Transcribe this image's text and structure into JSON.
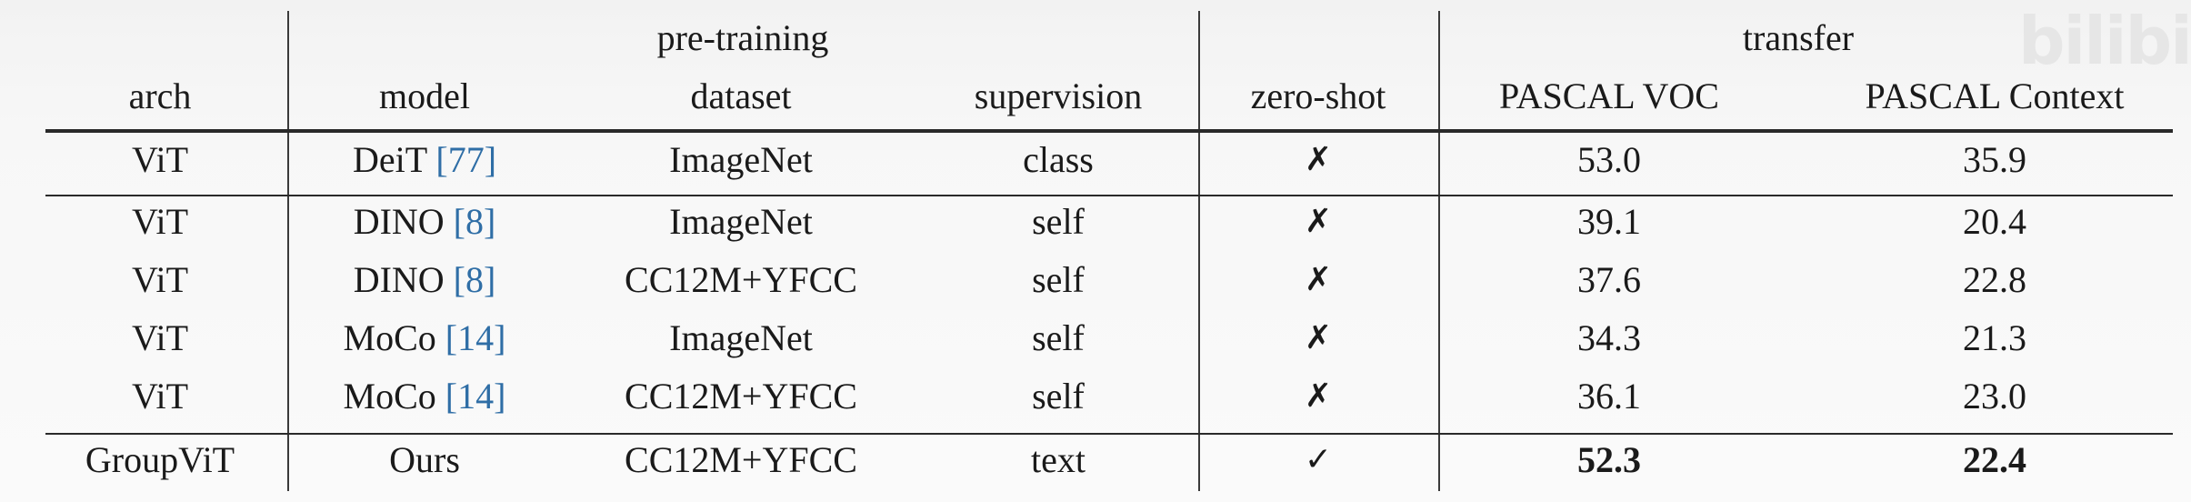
{
  "table": {
    "group_headers": {
      "pretraining": "pre-training",
      "transfer": "transfer"
    },
    "column_headers": {
      "arch": "arch",
      "model": "model",
      "dataset": "dataset",
      "supervision": "supervision",
      "zeroshot": "zero-shot",
      "voc": "PASCAL VOC",
      "context": "PASCAL Context"
    },
    "rows": [
      {
        "arch": "ViT",
        "model": "DeiT",
        "cite": "[77]",
        "dataset": "ImageNet",
        "supervision": "class",
        "zeroshot": "✗",
        "voc": "53.0",
        "context": "35.9"
      },
      {
        "arch": "ViT",
        "model": "DINO",
        "cite": "[8]",
        "dataset": "ImageNet",
        "supervision": "self",
        "zeroshot": "✗",
        "voc": "39.1",
        "context": "20.4"
      },
      {
        "arch": "ViT",
        "model": "DINO",
        "cite": "[8]",
        "dataset": "CC12M+YFCC",
        "supervision": "self",
        "zeroshot": "✗",
        "voc": "37.6",
        "context": "22.8"
      },
      {
        "arch": "ViT",
        "model": "MoCo",
        "cite": "[14]",
        "dataset": "ImageNet",
        "supervision": "self",
        "zeroshot": "✗",
        "voc": "34.3",
        "context": "21.3"
      },
      {
        "arch": "ViT",
        "model": "MoCo",
        "cite": "[14]",
        "dataset": "CC12M+YFCC",
        "supervision": "self",
        "zeroshot": "✗",
        "voc": "36.1",
        "context": "23.0"
      },
      {
        "arch": "GroupViT",
        "model": "Ours",
        "cite": "",
        "dataset": "CC12M+YFCC",
        "supervision": "text",
        "zeroshot": "✓",
        "voc": "52.3",
        "context": "22.4"
      }
    ]
  },
  "watermark": "bilibili",
  "colors": {
    "citation": "#2f6ea6",
    "text": "#1a1a1a"
  }
}
